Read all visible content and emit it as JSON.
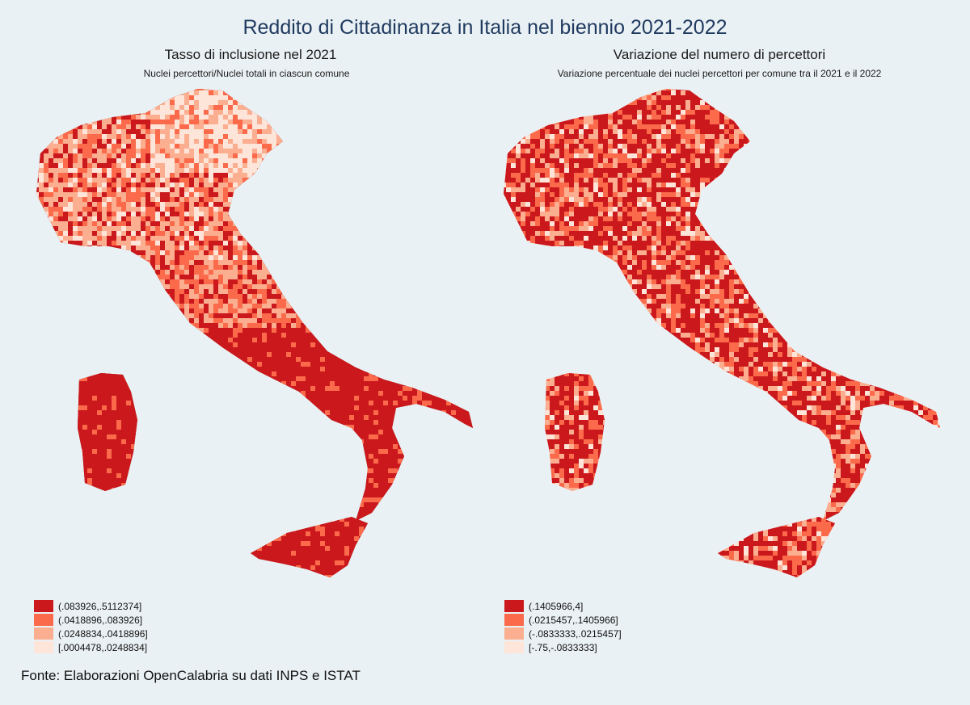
{
  "title": "Reddito di Cittadinanza in Italia nel biennio 2021-2022",
  "left_map": {
    "title": "Tasso di inclusione nel 2021",
    "subtitle": "Nuclei percettori/Nuclei totali in ciascun comune",
    "legend": [
      {
        "label": "(.083926,.5112374]",
        "color": "#cb181d"
      },
      {
        "label": "(.0418896,.083926]",
        "color": "#fb6a4a"
      },
      {
        "label": "(.0248834,.0418896]",
        "color": "#fcae91"
      },
      {
        "label": "[.0004478,.0248834]",
        "color": "#fee5d9"
      }
    ]
  },
  "right_map": {
    "title": "Variazione del numero di percettori",
    "subtitle": "Variazione percentuale dei nuclei percettori per comune tra il 2021 e il 2022",
    "legend": [
      {
        "label": "(.1405966,4]",
        "color": "#cb181d"
      },
      {
        "label": "(.0215457,.1405966]",
        "color": "#fb6a4a"
      },
      {
        "label": "(-.0833333,.0215457]",
        "color": "#fcae91"
      },
      {
        "label": "[-.75,-.0833333]",
        "color": "#fee5d9"
      }
    ]
  },
  "source": "Fonte: Elaborazioni OpenCalabria su dati INPS e ISTAT"
}
